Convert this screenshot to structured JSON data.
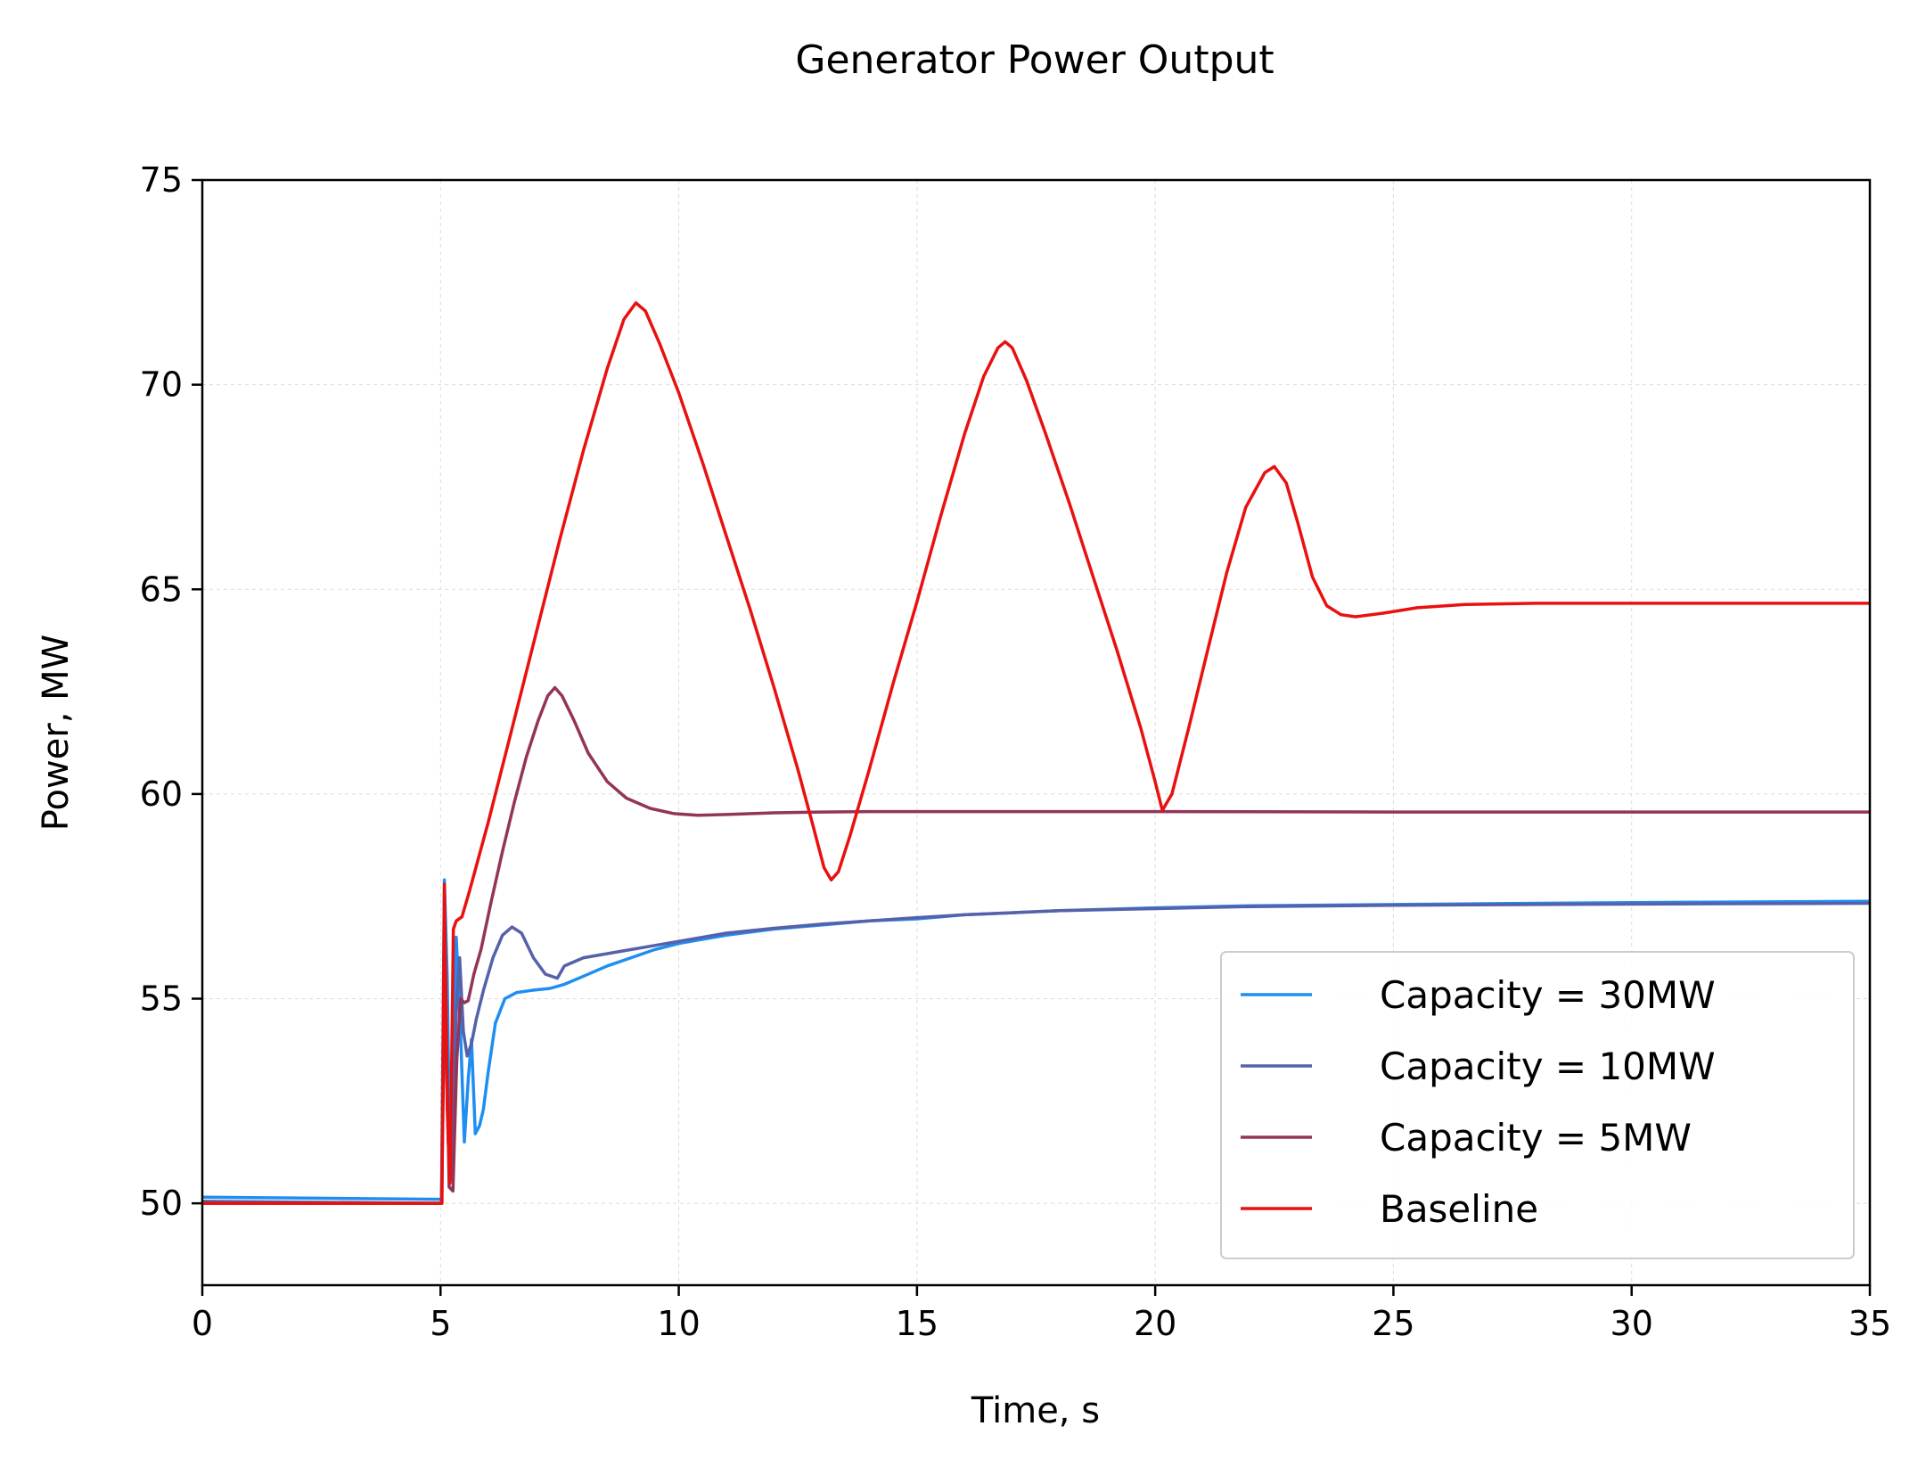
{
  "chart_data": {
    "type": "line",
    "title": "Generator Power Output",
    "xlabel": "Time, s",
    "ylabel": "Power, MW",
    "xlim": [
      0,
      35
    ],
    "ylim": [
      48,
      75
    ],
    "xticks": [
      0,
      5,
      10,
      15,
      20,
      25,
      30,
      35
    ],
    "xtick_labels": [
      "0",
      "5",
      "10",
      "15",
      "20",
      "25",
      "30",
      "35"
    ],
    "yticks": [
      50,
      55,
      60,
      65,
      70,
      75
    ],
    "ytick_labels": [
      "50",
      "55",
      "60",
      "65",
      "70",
      "75"
    ],
    "grid": true,
    "legend_position": "lower-right",
    "series": [
      {
        "name": "Capacity = 30MW",
        "color": "#1f8ef1",
        "points": [
          [
            0,
            50.15
          ],
          [
            4.95,
            50.1
          ],
          [
            5.02,
            50.1
          ],
          [
            5.08,
            57.9
          ],
          [
            5.14,
            55.5
          ],
          [
            5.2,
            50.7
          ],
          [
            5.26,
            53.0
          ],
          [
            5.33,
            56.5
          ],
          [
            5.42,
            54.2
          ],
          [
            5.5,
            51.5
          ],
          [
            5.58,
            53.0
          ],
          [
            5.65,
            54.0
          ],
          [
            5.73,
            51.7
          ],
          [
            5.82,
            51.9
          ],
          [
            5.9,
            52.3
          ],
          [
            6.0,
            53.2
          ],
          [
            6.15,
            54.4
          ],
          [
            6.35,
            55.0
          ],
          [
            6.6,
            55.15
          ],
          [
            6.9,
            55.2
          ],
          [
            7.3,
            55.25
          ],
          [
            7.6,
            55.35
          ],
          [
            8.0,
            55.55
          ],
          [
            8.5,
            55.8
          ],
          [
            9.0,
            56.0
          ],
          [
            9.5,
            56.2
          ],
          [
            10.0,
            56.35
          ],
          [
            10.5,
            56.45
          ],
          [
            11.0,
            56.55
          ],
          [
            12.0,
            56.7
          ],
          [
            13.0,
            56.8
          ],
          [
            14.0,
            56.9
          ],
          [
            15.0,
            56.95
          ],
          [
            16.0,
            57.05
          ],
          [
            17.0,
            57.1
          ],
          [
            18.0,
            57.15
          ],
          [
            20.0,
            57.22
          ],
          [
            22.0,
            57.27
          ],
          [
            25.0,
            57.3
          ],
          [
            28.0,
            57.33
          ],
          [
            32.0,
            57.36
          ],
          [
            35.0,
            57.38
          ]
        ]
      },
      {
        "name": "Capacity = 10MW",
        "color": "#5561a9",
        "points": [
          [
            0,
            50.05
          ],
          [
            4.95,
            50.0
          ],
          [
            5.02,
            50.0
          ],
          [
            5.08,
            56.8
          ],
          [
            5.16,
            51.5
          ],
          [
            5.24,
            50.6
          ],
          [
            5.32,
            54.5
          ],
          [
            5.4,
            56.0
          ],
          [
            5.48,
            54.2
          ],
          [
            5.56,
            53.6
          ],
          [
            5.65,
            53.9
          ],
          [
            5.75,
            54.5
          ],
          [
            5.9,
            55.2
          ],
          [
            6.1,
            56.0
          ],
          [
            6.3,
            56.55
          ],
          [
            6.5,
            56.75
          ],
          [
            6.7,
            56.6
          ],
          [
            6.95,
            56.0
          ],
          [
            7.2,
            55.6
          ],
          [
            7.45,
            55.5
          ],
          [
            7.6,
            55.8
          ],
          [
            8.0,
            56.0
          ],
          [
            8.5,
            56.1
          ],
          [
            9.0,
            56.2
          ],
          [
            9.5,
            56.3
          ],
          [
            10.0,
            56.4
          ],
          [
            11.0,
            56.6
          ],
          [
            12.0,
            56.72
          ],
          [
            13.0,
            56.82
          ],
          [
            14.0,
            56.9
          ],
          [
            15.0,
            56.98
          ],
          [
            16.0,
            57.05
          ],
          [
            17.0,
            57.1
          ],
          [
            18.0,
            57.15
          ],
          [
            20.0,
            57.2
          ],
          [
            22.0,
            57.25
          ],
          [
            25.0,
            57.28
          ],
          [
            28.0,
            57.3
          ],
          [
            32.0,
            57.32
          ],
          [
            35.0,
            57.33
          ]
        ]
      },
      {
        "name": "Capacity = 5MW",
        "color": "#93345a",
        "points": [
          [
            0,
            50.0
          ],
          [
            4.95,
            50.0
          ],
          [
            5.02,
            50.0
          ],
          [
            5.1,
            56.0
          ],
          [
            5.18,
            50.4
          ],
          [
            5.26,
            50.3
          ],
          [
            5.34,
            53.5
          ],
          [
            5.42,
            55.0
          ],
          [
            5.5,
            54.9
          ],
          [
            5.58,
            54.95
          ],
          [
            5.7,
            55.6
          ],
          [
            5.85,
            56.2
          ],
          [
            6.05,
            57.3
          ],
          [
            6.3,
            58.6
          ],
          [
            6.55,
            59.8
          ],
          [
            6.8,
            60.9
          ],
          [
            7.05,
            61.8
          ],
          [
            7.25,
            62.4
          ],
          [
            7.4,
            62.6
          ],
          [
            7.55,
            62.4
          ],
          [
            7.8,
            61.8
          ],
          [
            8.1,
            61.0
          ],
          [
            8.5,
            60.3
          ],
          [
            8.9,
            59.9
          ],
          [
            9.4,
            59.65
          ],
          [
            9.9,
            59.52
          ],
          [
            10.4,
            59.48
          ],
          [
            11.0,
            59.5
          ],
          [
            12.0,
            59.54
          ],
          [
            13.0,
            59.56
          ],
          [
            14.0,
            59.57
          ],
          [
            15.0,
            59.57
          ],
          [
            17.0,
            59.57
          ],
          [
            20.0,
            59.57
          ],
          [
            25.0,
            59.56
          ],
          [
            30.0,
            59.56
          ],
          [
            35.0,
            59.56
          ]
        ]
      },
      {
        "name": "Baseline",
        "color": "#e8110f",
        "points": [
          [
            0,
            50.0
          ],
          [
            4.98,
            50.0
          ],
          [
            5.03,
            50.0
          ],
          [
            5.08,
            57.8
          ],
          [
            5.14,
            52.3
          ],
          [
            5.2,
            50.5
          ],
          [
            5.27,
            56.7
          ],
          [
            5.33,
            56.9
          ],
          [
            5.45,
            57.0
          ],
          [
            5.6,
            57.6
          ],
          [
            6.0,
            59.3
          ],
          [
            6.5,
            61.6
          ],
          [
            7.0,
            63.9
          ],
          [
            7.5,
            66.2
          ],
          [
            8.0,
            68.4
          ],
          [
            8.5,
            70.4
          ],
          [
            8.85,
            71.6
          ],
          [
            9.1,
            72.0
          ],
          [
            9.3,
            71.8
          ],
          [
            9.6,
            71.0
          ],
          [
            10.0,
            69.8
          ],
          [
            10.5,
            68.1
          ],
          [
            11.0,
            66.3
          ],
          [
            11.5,
            64.5
          ],
          [
            12.0,
            62.6
          ],
          [
            12.5,
            60.6
          ],
          [
            12.8,
            59.3
          ],
          [
            13.05,
            58.2
          ],
          [
            13.2,
            57.9
          ],
          [
            13.35,
            58.1
          ],
          [
            13.6,
            59.0
          ],
          [
            14.0,
            60.6
          ],
          [
            14.5,
            62.7
          ],
          [
            15.0,
            64.7
          ],
          [
            15.5,
            66.8
          ],
          [
            16.0,
            68.8
          ],
          [
            16.4,
            70.2
          ],
          [
            16.7,
            70.9
          ],
          [
            16.85,
            71.05
          ],
          [
            17.0,
            70.9
          ],
          [
            17.3,
            70.1
          ],
          [
            17.7,
            68.8
          ],
          [
            18.2,
            67.1
          ],
          [
            18.7,
            65.3
          ],
          [
            19.2,
            63.5
          ],
          [
            19.7,
            61.6
          ],
          [
            20.0,
            60.3
          ],
          [
            20.15,
            59.6
          ],
          [
            20.35,
            60.0
          ],
          [
            20.7,
            61.6
          ],
          [
            21.1,
            63.5
          ],
          [
            21.5,
            65.4
          ],
          [
            21.9,
            67.0
          ],
          [
            22.3,
            67.85
          ],
          [
            22.5,
            68.0
          ],
          [
            22.75,
            67.6
          ],
          [
            23.0,
            66.6
          ],
          [
            23.3,
            65.3
          ],
          [
            23.6,
            64.6
          ],
          [
            23.9,
            64.38
          ],
          [
            24.2,
            64.33
          ],
          [
            24.8,
            64.42
          ],
          [
            25.5,
            64.55
          ],
          [
            26.5,
            64.63
          ],
          [
            28.0,
            64.66
          ],
          [
            30.0,
            64.66
          ],
          [
            32.0,
            64.66
          ],
          [
            35.0,
            64.66
          ]
        ]
      }
    ]
  }
}
